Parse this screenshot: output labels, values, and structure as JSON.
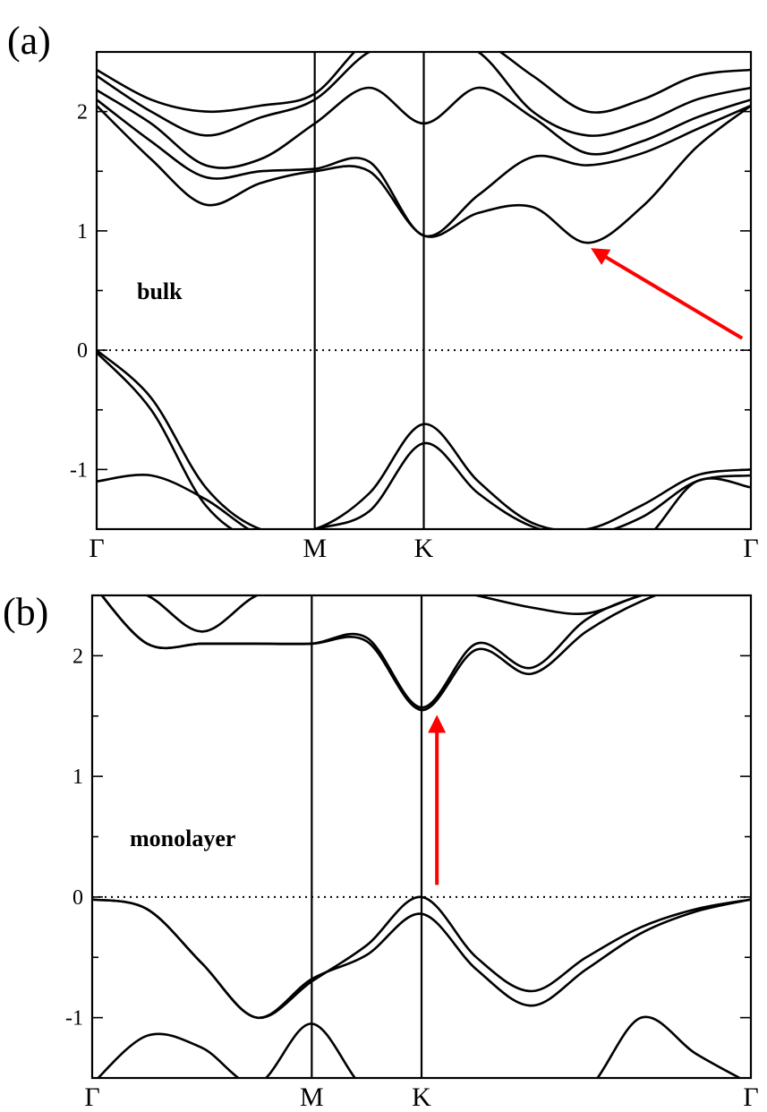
{
  "chart_data": [
    {
      "type": "line",
      "panel_label": "(a)",
      "annotation": "bulk",
      "ylim": [
        -1.5,
        2.5
      ],
      "yticks": [
        -1,
        0,
        1,
        2
      ],
      "ytick_labels": [
        "-1",
        "0",
        "1",
        "2"
      ],
      "xticks": [
        0,
        1,
        1.5,
        3
      ],
      "xtick_labels": [
        "Γ",
        "M",
        "K",
        "Γ"
      ],
      "fermi_level": 0,
      "arrow": {
        "from": [
          2.96,
          0.1
        ],
        "to": [
          2.28,
          0.84
        ],
        "color": "#ff0000"
      },
      "x": [
        0,
        0.25,
        0.5,
        0.75,
        1,
        1.25,
        1.5,
        1.75,
        2,
        2.25,
        2.5,
        2.75,
        3
      ],
      "series": [
        {
          "values": [
            0,
            -0.4,
            -1.15,
            -1.5,
            -1.5,
            -1.2,
            -0.62,
            -1.1,
            -1.45,
            -1.5,
            -1.3,
            -1.05,
            -1.0
          ]
        },
        {
          "values": [
            -0.02,
            -0.5,
            -1.3,
            -1.6,
            -1.5,
            -1.35,
            -0.78,
            -1.2,
            -1.48,
            -1.55,
            -1.4,
            -1.1,
            -1.05
          ]
        },
        {
          "values": [
            -1.1,
            -1.05,
            -1.25,
            -1.55,
            -1.6,
            -1.6,
            -1.6,
            -1.6,
            -1.6,
            -1.6,
            -1.6,
            -1.1,
            -1.15
          ]
        },
        {
          "values": [
            2.05,
            1.6,
            1.22,
            1.4,
            1.5,
            1.5,
            0.96,
            1.15,
            1.2,
            0.9,
            1.2,
            1.7,
            2.05
          ]
        },
        {
          "values": [
            2.1,
            1.75,
            1.45,
            1.5,
            1.52,
            1.58,
            0.96,
            1.3,
            1.62,
            1.55,
            1.65,
            1.85,
            2.05
          ]
        },
        {
          "values": [
            2.18,
            1.9,
            1.55,
            1.6,
            1.9,
            2.2,
            1.9,
            2.2,
            1.95,
            1.65,
            1.75,
            1.95,
            2.1
          ]
        },
        {
          "values": [
            2.3,
            2.0,
            1.8,
            1.95,
            2.1,
            2.5,
            2.6,
            2.5,
            2.0,
            1.8,
            1.9,
            2.1,
            2.2
          ]
        },
        {
          "values": [
            2.35,
            2.1,
            2.0,
            2.05,
            2.15,
            2.6,
            2.6,
            2.6,
            2.3,
            2.0,
            2.1,
            2.3,
            2.35
          ]
        }
      ]
    },
    {
      "type": "line",
      "panel_label": "(b)",
      "annotation": "monolayer",
      "ylim": [
        -1.5,
        2.5
      ],
      "yticks": [
        -1,
        0,
        1,
        2
      ],
      "ytick_labels": [
        "-1",
        "0",
        "1",
        "2"
      ],
      "xticks": [
        0,
        1,
        1.5,
        3
      ],
      "xtick_labels": [
        "Γ",
        "M",
        "K",
        "Γ"
      ],
      "fermi_level": 0,
      "arrow": {
        "from": [
          1.57,
          0.1
        ],
        "to": [
          1.57,
          1.48
        ],
        "color": "#ff0000"
      },
      "x": [
        0,
        0.25,
        0.5,
        0.75,
        1,
        1.25,
        1.5,
        1.75,
        2,
        2.25,
        2.5,
        2.75,
        3
      ],
      "series": [
        {
          "values": [
            -0.02,
            -0.1,
            -0.55,
            -1.0,
            -0.7,
            -0.4,
            0.0,
            -0.5,
            -0.78,
            -0.5,
            -0.25,
            -0.1,
            -0.02
          ]
        },
        {
          "values": [
            -0.02,
            -0.1,
            -0.55,
            -1.0,
            -0.68,
            -0.48,
            -0.14,
            -0.6,
            -0.9,
            -0.6,
            -0.3,
            -0.12,
            -0.02
          ]
        },
        {
          "values": [
            -1.55,
            -1.15,
            -1.25,
            -1.55,
            -1.05,
            -1.6,
            -1.6,
            -1.6,
            -1.6,
            -1.6,
            -1.0,
            -1.3,
            -1.55
          ]
        },
        {
          "values": [
            2.6,
            2.1,
            2.1,
            2.1,
            2.1,
            2.12,
            1.55,
            2.05,
            1.85,
            2.2,
            2.45,
            2.6,
            2.6
          ]
        },
        {
          "values": [
            2.6,
            2.1,
            2.1,
            2.1,
            2.1,
            2.15,
            1.57,
            2.1,
            1.9,
            2.3,
            2.5,
            2.6,
            2.6
          ]
        },
        {
          "values": [
            2.6,
            2.5,
            2.2,
            2.5,
            2.6,
            2.6,
            2.6,
            2.5,
            2.4,
            2.35,
            2.5,
            2.6,
            2.6
          ]
        }
      ]
    }
  ]
}
